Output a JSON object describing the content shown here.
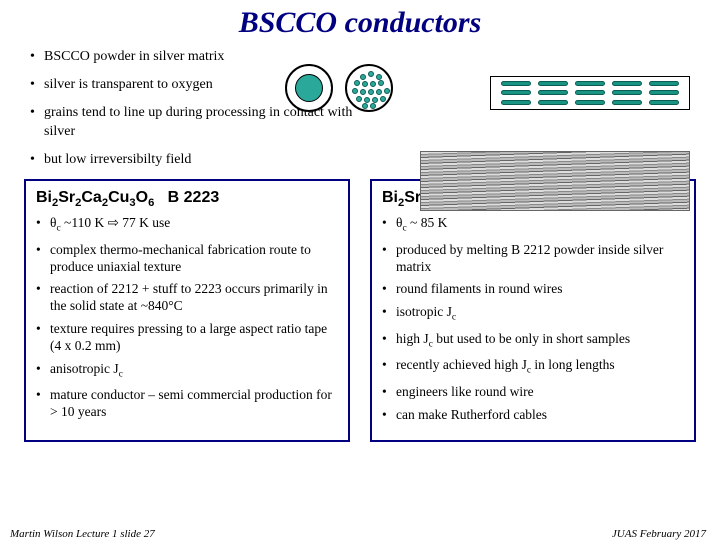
{
  "title": "BSCCO conductors",
  "bullets_top": [
    "BSCCO powder in silver matrix",
    "silver is transparent to oxygen",
    "grains tend to line up during processing in contact with silver",
    "but low irreversibilty field"
  ],
  "left": {
    "formula_html": "Bi<sub>2</sub>Sr<sub>2</sub>Ca<sub>2</sub>Cu<sub>3</sub>O<sub>6</sub>&nbsp;&nbsp;&nbsp;B 2223",
    "items": [
      "θ<sub>c</sub> ~110 K ⇨ 77 K use",
      "complex thermo-mechanical fabrication route to produce uniaxial texture",
      "reaction of 2212 + stuff to 2223 occurs primarily in the solid state at ~840°C",
      "texture requires pressing to a large aspect ratio tape (4 x 0.2 mm)",
      "anisotropic J<sub>c</sub>",
      "mature conductor – semi commercial production for > 10 years"
    ]
  },
  "right": {
    "formula_html": "Bi<sub>2</sub>Sr<sub>2</sub>Ca.Cu<sub>2</sub>O<sub>8</sub>&nbsp;&nbsp;&nbsp;B 2212",
    "items": [
      "θ<sub>c</sub> ~ 85 K",
      "produced by melting B 2212 powder inside silver matrix",
      "round filaments in round wires",
      "isotropic J<sub>c</sub>",
      "high J<sub>c</sub> but used to be only in short samples",
      "recently achieved high J<sub>c</sub> in long lengths",
      "engineers like round wire",
      "can make Rutherford cables"
    ]
  },
  "footer_left": "Martin Wilson Lecture 1 slide 27",
  "footer_right": "JUAS February 2017",
  "colors": {
    "title": "#000080",
    "box_border": "#000080",
    "filament": "#2aa89a"
  }
}
